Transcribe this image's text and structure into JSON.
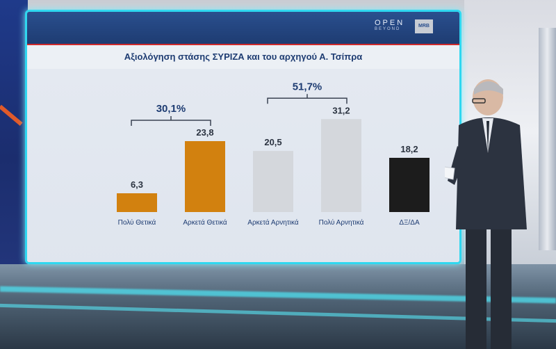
{
  "chart_data": {
    "type": "bar",
    "title": "Αξιολόγηση στάσης ΣΥΡΙΖΑ και του αρχηγού Α. Τσίπρα",
    "categories": [
      "Πολύ Θετικά",
      "Αρκετά Θετικά",
      "Αρκετά Αρνητικά",
      "Πολύ Αρνητικά",
      "ΔΞ/ΔΑ"
    ],
    "values": [
      6.3,
      23.8,
      20.5,
      31.2,
      18.2
    ],
    "value_labels": [
      "6,3",
      "23,8",
      "20,5",
      "31,2",
      "18,2"
    ],
    "bar_colors": [
      "#d2810f",
      "#d2810f",
      "#d4d7dc",
      "#d4d7dc",
      "#1c1c1c"
    ],
    "groups": [
      {
        "label": "30,1%",
        "from": 0,
        "to": 1
      },
      {
        "label": "51,7%",
        "from": 2,
        "to": 3
      }
    ],
    "ylim": [
      0,
      35
    ],
    "grid": false
  },
  "broadcast": {
    "logo_text": "OPEN",
    "logo_subtext": "BEYOND",
    "agency_badge": "MRB"
  }
}
